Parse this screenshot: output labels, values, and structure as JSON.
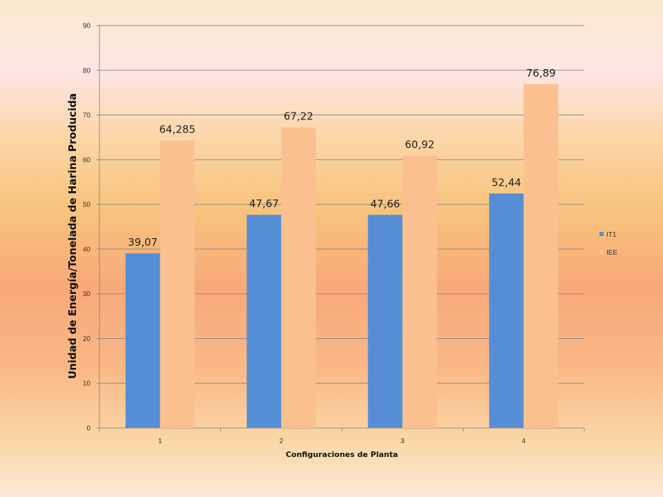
{
  "chart_data": {
    "type": "bar",
    "categories": [
      "1",
      "2",
      "3",
      "4"
    ],
    "series": [
      {
        "name": "IT1",
        "values": [
          39.07,
          47.67,
          47.66,
          52.44
        ],
        "labels": [
          "39,07",
          "47,67",
          "47,66",
          "52,44"
        ],
        "color": "#558ed5"
      },
      {
        "name": "IEE",
        "values": [
          64.285,
          67.22,
          60.92,
          76.89
        ],
        "labels": [
          "64,285",
          "67,22",
          "60,92",
          "76,89"
        ],
        "color": "#fac090"
      }
    ],
    "title": "",
    "xlabel": "Configuraciones  de Planta",
    "ylabel": "Unidad de Energía/Tonelada de Harina Producida",
    "ylim": [
      0,
      90
    ],
    "yticks": [
      0,
      10,
      20,
      30,
      40,
      50,
      60,
      70,
      80,
      90
    ],
    "grid": true,
    "legend_position": "right"
  }
}
